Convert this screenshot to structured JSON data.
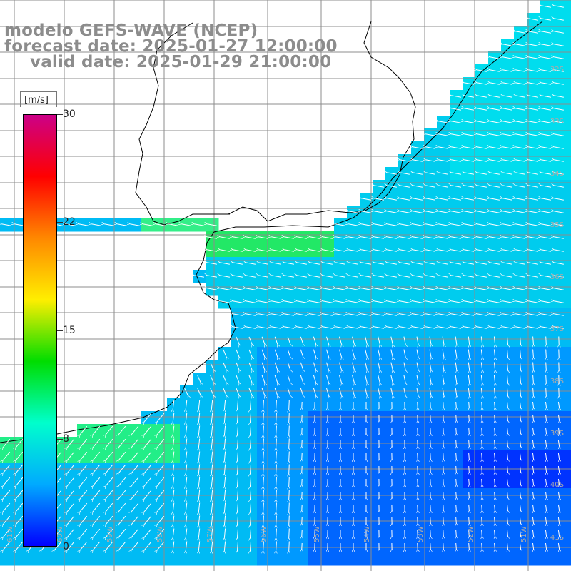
{
  "titles": {
    "model": "modelo GEFS-WAVE (NCEP)",
    "forecast": "forecast date: 2025-01-27 12:00:00",
    "valid": "valid date: 2025-01-29 21:00:00"
  },
  "colorbar": {
    "unit": "[m/s]",
    "ticks": [
      "30",
      "22",
      "15",
      "8",
      "0"
    ],
    "colors": [
      "#cc0088",
      "#ff0000",
      "#ff8800",
      "#ffee00",
      "#00dd00",
      "#00ffcc",
      "#00aaff",
      "#0000ff"
    ]
  },
  "lat_labels": [
    "32S",
    "33S",
    "34S",
    "35S",
    "36S",
    "37S",
    "38S",
    "39S",
    "40S",
    "41S"
  ],
  "lon_labels": [
    "61W",
    "60W",
    "59W",
    "58W",
    "57W",
    "56W",
    "55W",
    "54W",
    "53W",
    "52W",
    "51W"
  ],
  "land_color": "#ffffff",
  "grid_color": "#8c8c8c"
}
